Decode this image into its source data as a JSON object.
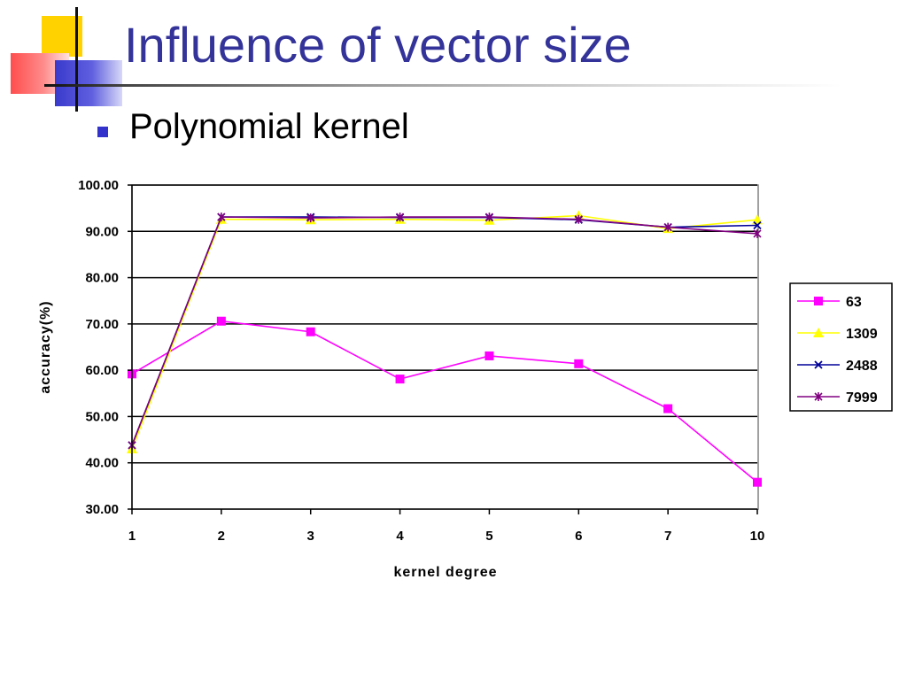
{
  "slide": {
    "title": "Influence of vector size",
    "bullet": "Polynomial kernel"
  },
  "chart_data": {
    "type": "line",
    "categories": [
      "1",
      "2",
      "3",
      "4",
      "5",
      "6",
      "7",
      "10"
    ],
    "ylim": [
      30,
      100
    ],
    "yticks": [
      "100.00",
      "90.00",
      "80.00",
      "70.00",
      "60.00",
      "50.00",
      "40.00",
      "30.00"
    ],
    "xlabel": "kernel degree",
    "ylabel": "accuracy(%)",
    "grid": "horizontal",
    "legend_position": "right",
    "series": [
      {
        "name": "63",
        "color": "#ff00ff",
        "marker": "square",
        "values": [
          59.2,
          70.6,
          68.3,
          58.1,
          63.1,
          61.4,
          51.7,
          35.8
        ]
      },
      {
        "name": "1309",
        "color": "#ffff00",
        "marker": "triangle",
        "values": [
          43.0,
          92.6,
          92.5,
          92.6,
          92.4,
          93.4,
          90.6,
          92.5
        ]
      },
      {
        "name": "2488",
        "color": "#000099",
        "marker": "x",
        "values": [
          43.8,
          93.1,
          93.1,
          93.0,
          93.0,
          92.5,
          90.9,
          91.3
        ]
      },
      {
        "name": "7999",
        "color": "#800080",
        "marker": "star",
        "values": [
          43.8,
          93.1,
          92.9,
          93.1,
          93.1,
          92.6,
          90.9,
          89.5
        ]
      }
    ]
  }
}
